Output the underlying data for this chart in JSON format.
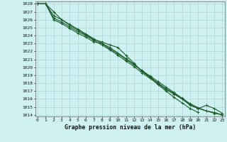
{
  "title": "Graphe pression niveau de la mer (hPa)",
  "xlim": [
    -0.3,
    23.3
  ],
  "ylim": [
    1013.8,
    1028.3
  ],
  "xticks": [
    0,
    1,
    2,
    3,
    4,
    5,
    6,
    7,
    8,
    9,
    10,
    11,
    12,
    13,
    14,
    15,
    16,
    17,
    18,
    19,
    20,
    21,
    22,
    23
  ],
  "yticks": [
    1014,
    1015,
    1016,
    1017,
    1018,
    1019,
    1020,
    1021,
    1022,
    1023,
    1024,
    1025,
    1026,
    1027,
    1028
  ],
  "bg_color": "#cff0f0",
  "grid_color": "#aad8d8",
  "line_colors": [
    "#1a5c2a",
    "#1a5c2a",
    "#1a5c2a",
    "#1a5c2a"
  ],
  "lines": [
    [
      1028.0,
      1028.0,
      1027.0,
      1026.0,
      1025.3,
      1024.7,
      1024.1,
      1023.5,
      1023.2,
      1022.8,
      1022.5,
      1021.5,
      1020.5,
      1019.5,
      1018.7,
      1017.8,
      1017.0,
      1016.2,
      1015.5,
      1014.8,
      1014.3,
      null,
      null,
      null
    ],
    [
      1028.0,
      1028.0,
      1026.0,
      1025.5,
      1024.9,
      1024.3,
      1023.8,
      1023.2,
      1023.0,
      1022.5,
      1021.8,
      1021.1,
      1020.4,
      1019.5,
      1018.8,
      1018.0,
      1017.3,
      1016.7,
      1016.0,
      1015.2,
      1014.8,
      1015.2,
      1014.8,
      1014.2
    ],
    [
      1028.0,
      1028.0,
      1026.2,
      1025.7,
      1025.1,
      1024.5,
      1024.0,
      1023.4,
      1022.8,
      1022.2,
      1021.5,
      1020.8,
      1020.1,
      1019.3,
      1018.6,
      1017.9,
      1017.2,
      1016.6,
      1016.0,
      1015.3,
      1014.8,
      1014.5,
      1014.3,
      1014.0
    ],
    [
      1028.0,
      1028.0,
      1026.5,
      1026.0,
      1025.4,
      1024.8,
      1024.2,
      1023.6,
      1023.0,
      1022.3,
      1021.7,
      1021.0,
      1020.3,
      1019.6,
      1018.9,
      1018.2,
      1017.5,
      1016.8,
      1016.1,
      1015.4,
      1014.9,
      1014.5,
      1014.2,
      1014.0
    ]
  ]
}
